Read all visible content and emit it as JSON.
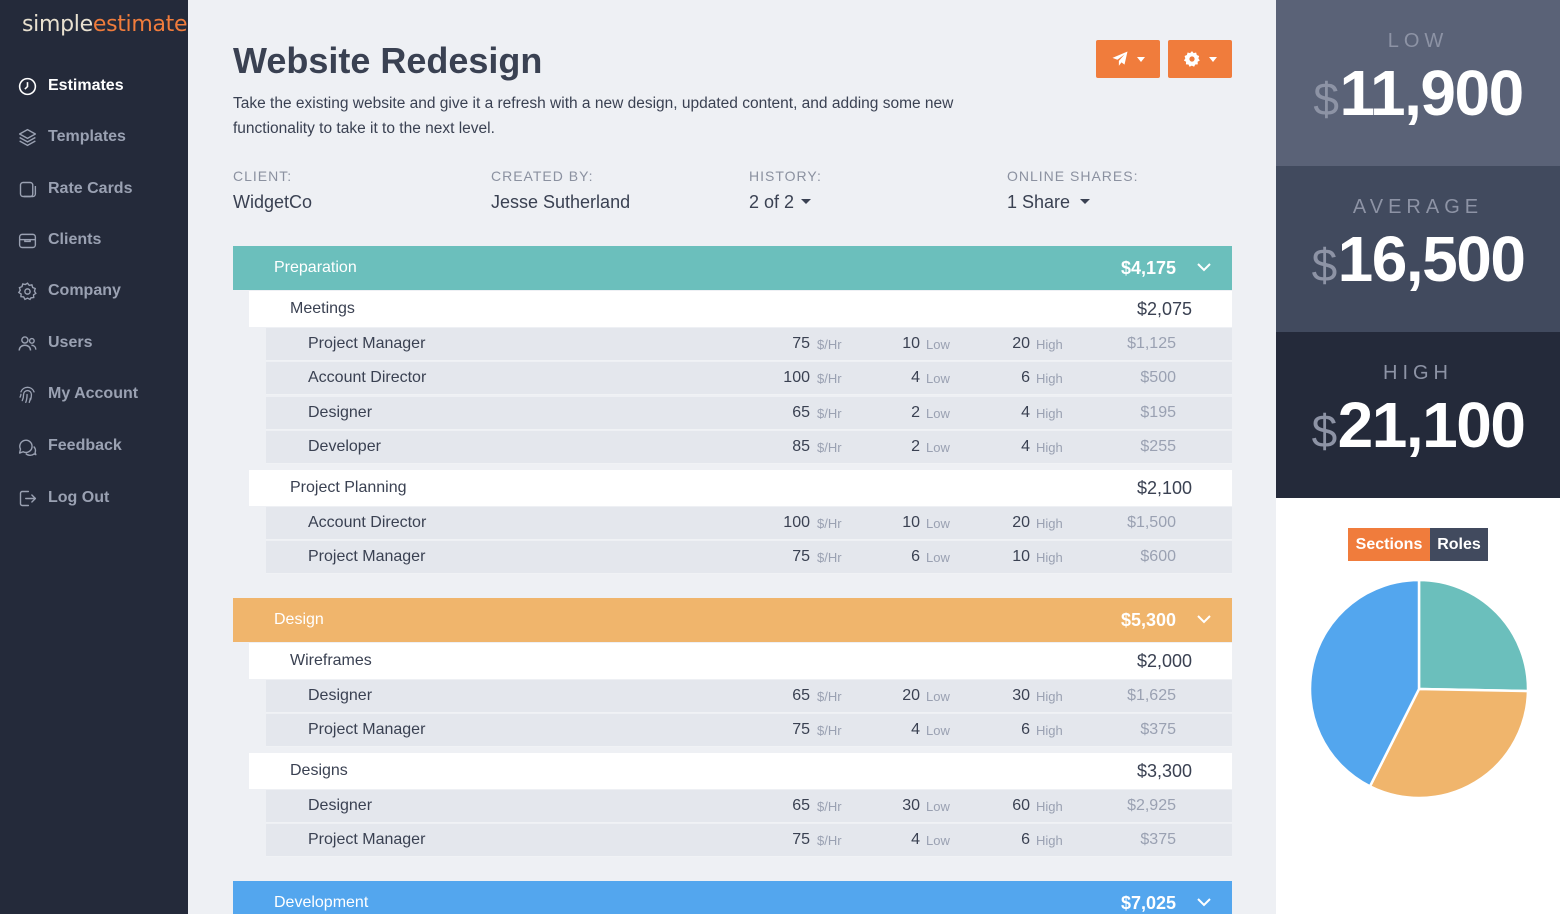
{
  "app": {
    "logo_part1": "simple",
    "logo_part2": "estimate"
  },
  "sidebar": {
    "items": [
      {
        "label": "Estimates",
        "icon": "clock-icon",
        "active": true
      },
      {
        "label": "Templates",
        "icon": "layers-icon",
        "active": false
      },
      {
        "label": "Rate Cards",
        "icon": "card-icon",
        "active": false
      },
      {
        "label": "Clients",
        "icon": "briefcase-icon",
        "active": false
      },
      {
        "label": "Company",
        "icon": "gear-icon",
        "active": false
      },
      {
        "label": "Users",
        "icon": "users-icon",
        "active": false
      },
      {
        "label": "My Account",
        "icon": "fingerprint-icon",
        "active": false
      },
      {
        "label": "Feedback",
        "icon": "chat-icon",
        "active": false
      },
      {
        "label": "Log Out",
        "icon": "logout-icon",
        "active": false
      }
    ]
  },
  "estimate": {
    "title": "Website Redesign",
    "description": "Take the existing website and give it a refresh with a new design, updated content, and adding some new functionality to take it to the next level.",
    "toolbar": {
      "send_icon": "paper-plane-icon",
      "settings_icon": "gear-icon"
    },
    "meta": {
      "client_label": "CLIENT:",
      "client_value": "WidgetCo",
      "created_label": "CREATED BY:",
      "created_value": "Jesse Sutherland",
      "history_label": "HISTORY:",
      "history_value": "2 of 2",
      "shares_label": "ONLINE SHARES:",
      "shares_value": "1 Share"
    }
  },
  "units": {
    "rate": "$/Hr",
    "low": "Low",
    "high": "High"
  },
  "sections": [
    {
      "name": "Preparation",
      "total": "$4,175",
      "color": "#6bbfbc",
      "groups": [
        {
          "name": "Meetings",
          "total": "$2,075",
          "roles": [
            {
              "name": "Project Manager",
              "rate": "75",
              "low": "10",
              "high": "20",
              "amount": "$1,125"
            },
            {
              "name": "Account Director",
              "rate": "100",
              "low": "4",
              "high": "6",
              "amount": "$500"
            },
            {
              "name": "Designer",
              "rate": "65",
              "low": "2",
              "high": "4",
              "amount": "$195"
            },
            {
              "name": "Developer",
              "rate": "85",
              "low": "2",
              "high": "4",
              "amount": "$255"
            }
          ]
        },
        {
          "name": "Project Planning",
          "total": "$2,100",
          "roles": [
            {
              "name": "Account Director",
              "rate": "100",
              "low": "10",
              "high": "20",
              "amount": "$1,500"
            },
            {
              "name": "Project Manager",
              "rate": "75",
              "low": "6",
              "high": "10",
              "amount": "$600"
            }
          ]
        }
      ]
    },
    {
      "name": "Design",
      "total": "$5,300",
      "color": "#f0b56c",
      "groups": [
        {
          "name": "Wireframes",
          "total": "$2,000",
          "roles": [
            {
              "name": "Designer",
              "rate": "65",
              "low": "20",
              "high": "30",
              "amount": "$1,625"
            },
            {
              "name": "Project Manager",
              "rate": "75",
              "low": "4",
              "high": "6",
              "amount": "$375"
            }
          ]
        },
        {
          "name": "Designs",
          "total": "$3,300",
          "roles": [
            {
              "name": "Designer",
              "rate": "65",
              "low": "30",
              "high": "60",
              "amount": "$2,925"
            },
            {
              "name": "Project Manager",
              "rate": "75",
              "low": "4",
              "high": "6",
              "amount": "$375"
            }
          ]
        }
      ]
    },
    {
      "name": "Development",
      "total": "$7,025",
      "color": "#53a6ee",
      "groups": []
    }
  ],
  "summary": {
    "low_label": "LOW",
    "low_currency": "$",
    "low_value": "11,900",
    "avg_label": "AVERAGE",
    "avg_currency": "$",
    "avg_value": "16,500",
    "high_label": "HIGH",
    "high_currency": "$",
    "high_value": "21,100",
    "tab_sections": "Sections",
    "tab_roles": "Roles",
    "active_tab": "Sections"
  },
  "chart_data": {
    "type": "pie",
    "categories": [
      "Preparation",
      "Design",
      "Development"
    ],
    "values": [
      4175,
      5300,
      7025
    ],
    "colors": [
      "#6bbfbc",
      "#f0b56c",
      "#53a6ee"
    ]
  }
}
